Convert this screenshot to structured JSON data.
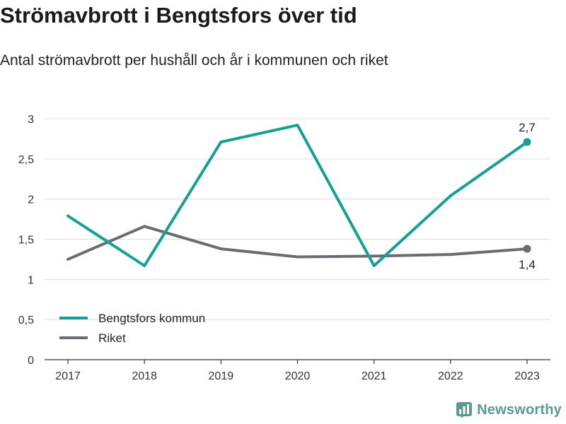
{
  "chart_data": {
    "type": "line",
    "title": "Strömavbrott i Bengtsfors över tid",
    "subtitle": "Antal strömavbrott per hushåll och år i kommunen och riket",
    "x": [
      "2017",
      "2018",
      "2019",
      "2020",
      "2021",
      "2022",
      "2023"
    ],
    "ylim": [
      0,
      3
    ],
    "yticks": [
      0,
      0.5,
      1,
      1.5,
      2,
      2.5,
      3
    ],
    "ytick_labels": [
      "0",
      "0,5",
      "1",
      "1,5",
      "2",
      "2,5",
      "3"
    ],
    "grid": "horizontal",
    "legend_position": "bottom-left",
    "series": [
      {
        "name": "Bengtsfors kommun",
        "color": "#14a095",
        "values": [
          1.79,
          1.17,
          2.71,
          2.92,
          1.17,
          2.04,
          2.71
        ],
        "end_label": "2,7",
        "end_label_position": "above"
      },
      {
        "name": "Riket",
        "color": "#6b6b72",
        "values": [
          1.25,
          1.66,
          1.38,
          1.28,
          1.29,
          1.31,
          1.38
        ],
        "end_label": "1,4",
        "end_label_position": "below"
      }
    ]
  },
  "brand": {
    "name": "Newsworthy",
    "icon": "newsworthy-logo-icon",
    "color": "#5a9a8e"
  }
}
